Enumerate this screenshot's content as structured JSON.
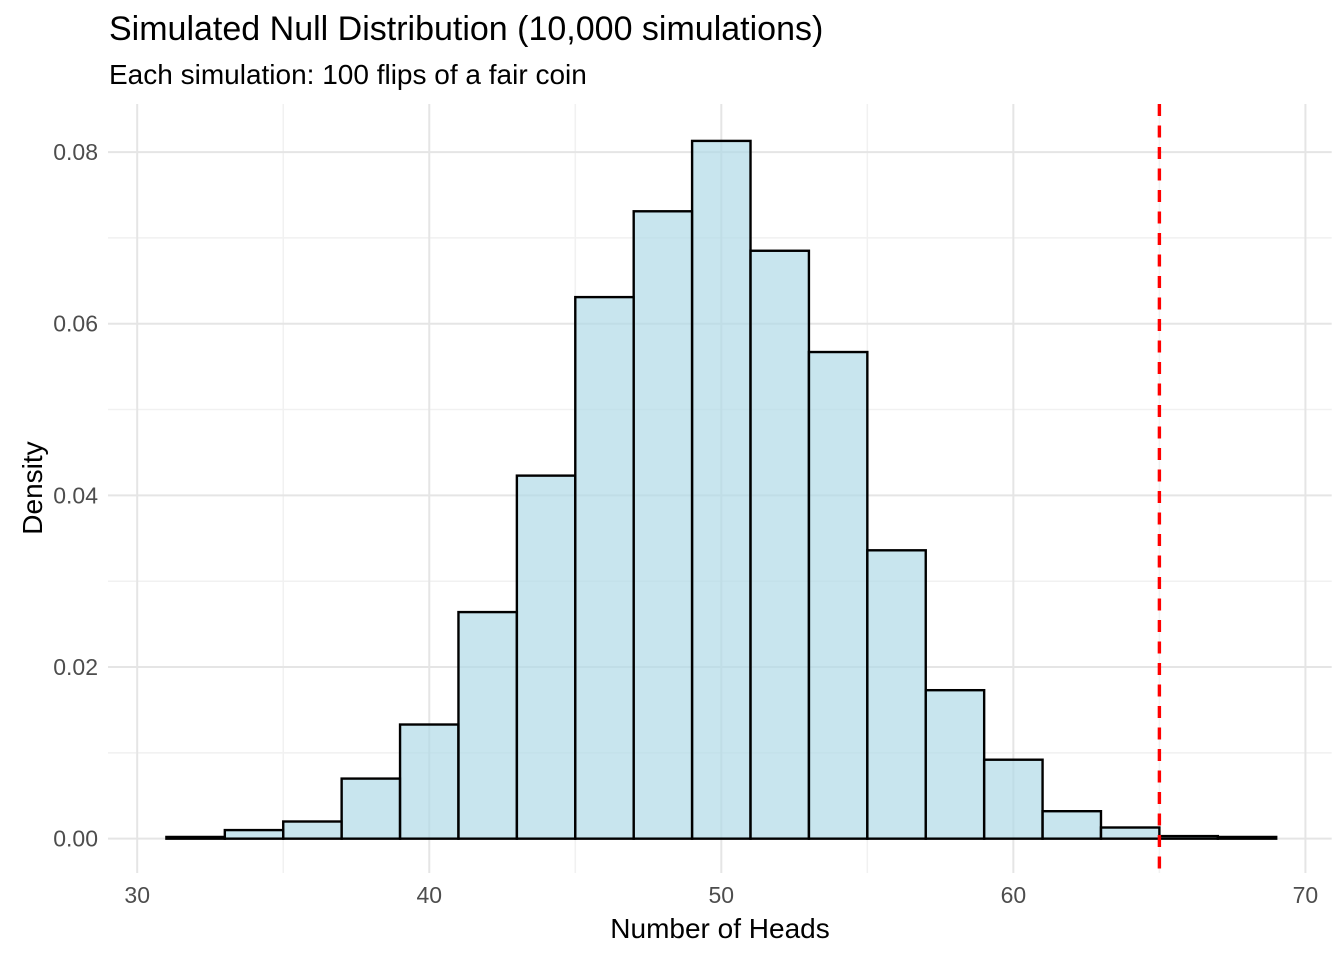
{
  "chart_data": {
    "type": "bar",
    "subtype": "histogram",
    "title": "Simulated Null Distribution (10,000 simulations)",
    "subtitle": "Each simulation: 100 flips of a fair coin",
    "xlabel": "Number of Heads",
    "ylabel": "Density",
    "bin_width": 2,
    "bin_edges": [
      31,
      33,
      35,
      37,
      39,
      41,
      43,
      45,
      47,
      49,
      51,
      53,
      55,
      57,
      59,
      61,
      63,
      65,
      67,
      69
    ],
    "densities": [
      0.0002,
      0.001,
      0.002,
      0.007,
      0.0133,
      0.0264,
      0.0423,
      0.0631,
      0.0731,
      0.0813,
      0.0685,
      0.0567,
      0.0336,
      0.0173,
      0.0092,
      0.0032,
      0.0013,
      0.0003,
      0.0002
    ],
    "x_ticks": [
      {
        "v": 30,
        "label": "30"
      },
      {
        "v": 40,
        "label": "40"
      },
      {
        "v": 50,
        "label": "50"
      },
      {
        "v": 60,
        "label": "60"
      },
      {
        "v": 70,
        "label": "70"
      }
    ],
    "x_minor": [
      35,
      45,
      55,
      65
    ],
    "y_ticks": [
      {
        "v": 0.0,
        "label": "0.00"
      },
      {
        "v": 0.02,
        "label": "0.02"
      },
      {
        "v": 0.04,
        "label": "0.04"
      },
      {
        "v": 0.06,
        "label": "0.06"
      },
      {
        "v": 0.08,
        "label": "0.08"
      }
    ],
    "y_minor": [
      0.01,
      0.03,
      0.05,
      0.07
    ],
    "xlim": [
      29.0,
      70.9
    ],
    "ylim": [
      -0.004,
      0.0856
    ],
    "grid": true,
    "legend_position": "none",
    "vline": {
      "x": 65,
      "style": "dashed",
      "color": "#FF0000"
    },
    "colors": {
      "bar_fill": "#ADD8E6",
      "bar_fill_opacity": 0.67,
      "bar_stroke": "#000000",
      "grid_major": "#E5E5E5",
      "grid_minor": "#F1F1F1",
      "tick_text": "#4D4D4D",
      "title_text": "#000000",
      "vline": "#FF0000",
      "background": "#FFFFFF"
    }
  }
}
